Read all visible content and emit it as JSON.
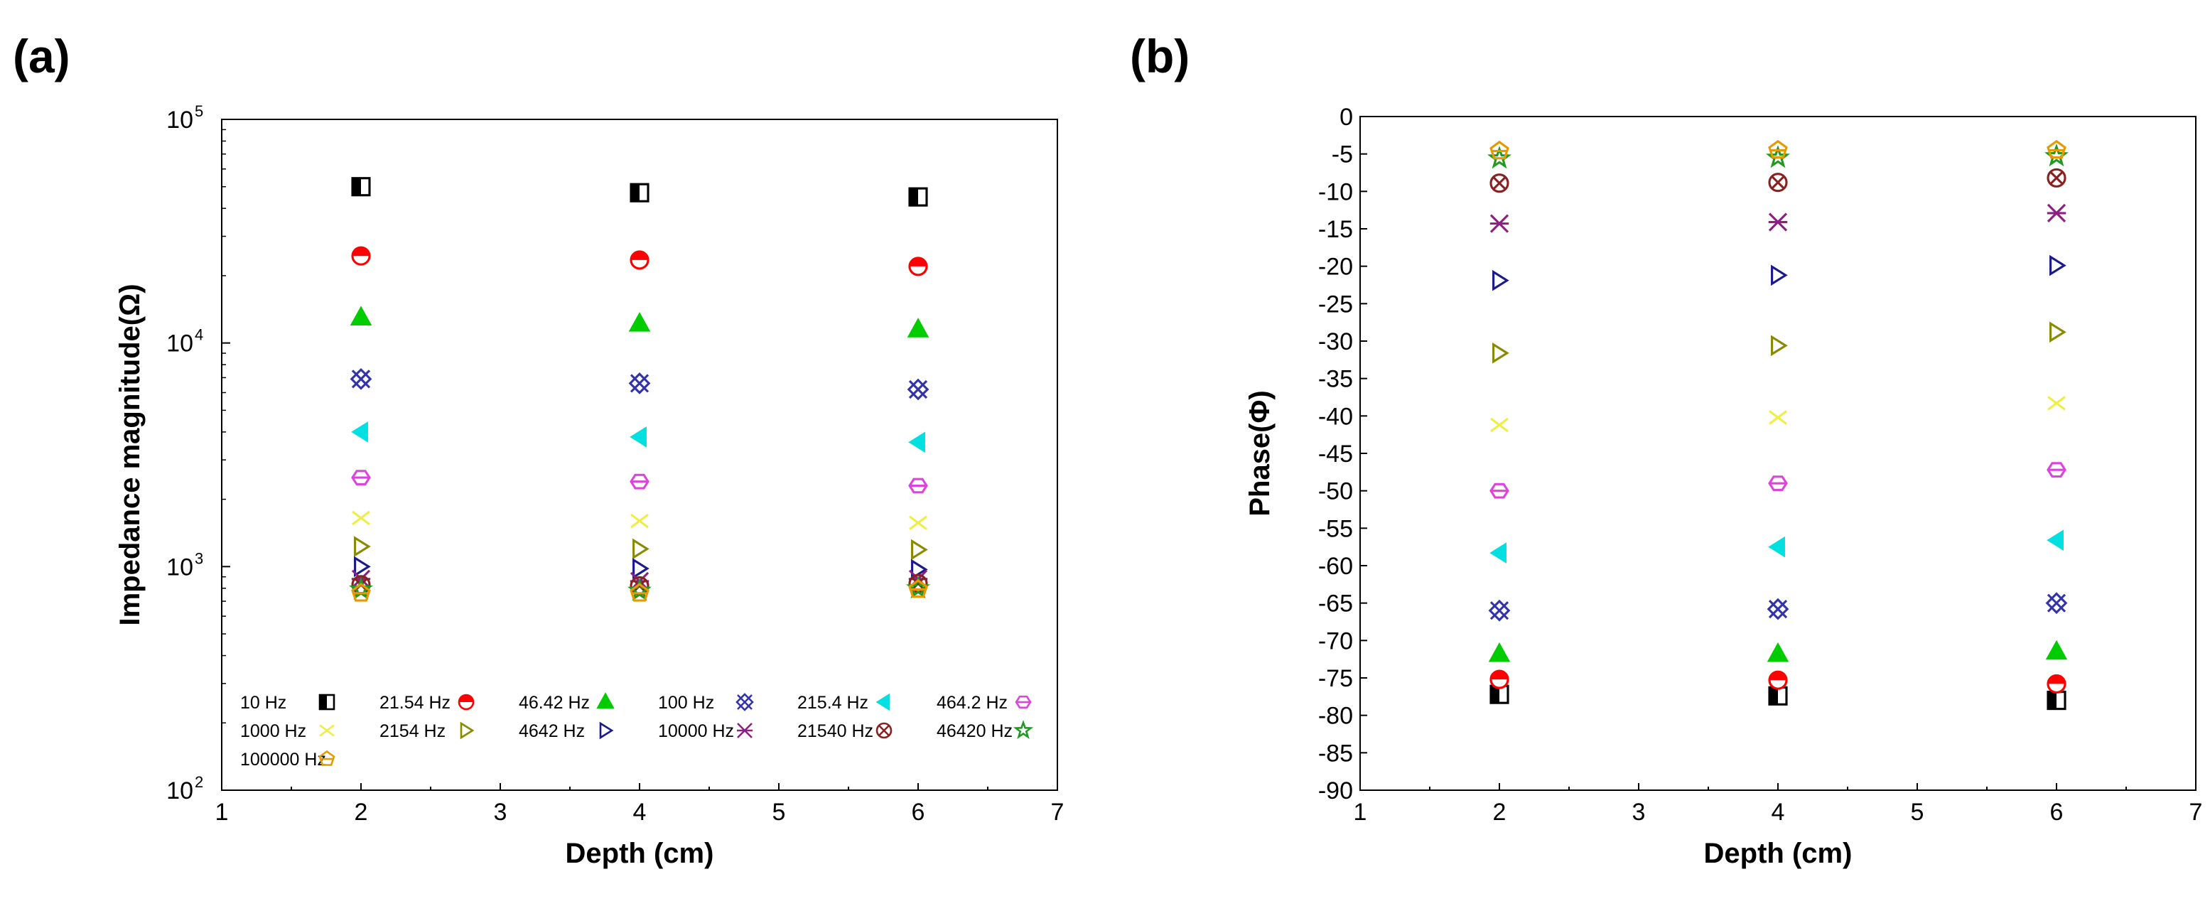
{
  "panels": {
    "a_label": "(a)",
    "b_label": "(b)"
  },
  "chart_data": [
    {
      "id": "a",
      "type": "scatter",
      "title": "",
      "xlabel": "Depth (cm)",
      "ylabel": "Impedance magnitude(Ω)",
      "xlim": [
        1,
        7
      ],
      "ylim": [
        100,
        100000
      ],
      "yscale": "log",
      "x_ticks": [
        "1",
        "2",
        "3",
        "4",
        "5",
        "6",
        "7"
      ],
      "y_ticks": [
        {
          "value": 100,
          "base": "10",
          "exp": "2"
        },
        {
          "value": 1000,
          "base": "10",
          "exp": "3"
        },
        {
          "value": 10000,
          "base": "10",
          "exp": "4"
        },
        {
          "value": 100000,
          "base": "10",
          "exp": "5"
        }
      ],
      "legend_position": "bottom-left inside",
      "x": [
        2,
        4,
        6
      ],
      "series": [
        {
          "name": "10 Hz",
          "marker": "half-square",
          "color": "#000000",
          "values": [
            50000,
            47000,
            45000
          ]
        },
        {
          "name": "21.54 Hz",
          "marker": "half-circle",
          "color": "#ff0000",
          "values": [
            24500,
            23500,
            22000
          ]
        },
        {
          "name": "46.42 Hz",
          "marker": "triangle-up",
          "color": "#00cc00",
          "values": [
            13000,
            12200,
            11500
          ]
        },
        {
          "name": "100 Hz",
          "marker": "crossed-diamond",
          "color": "#3333aa",
          "values": [
            6900,
            6600,
            6200
          ]
        },
        {
          "name": "215.4 Hz",
          "marker": "triangle-left",
          "color": "#00e0e0",
          "values": [
            4000,
            3800,
            3600
          ]
        },
        {
          "name": "464.2 Hz",
          "marker": "hexagon",
          "color": "#dd44dd",
          "values": [
            2500,
            2400,
            2300
          ]
        },
        {
          "name": "1000 Hz",
          "marker": "x",
          "color": "#eeee44",
          "values": [
            1650,
            1600,
            1570
          ]
        },
        {
          "name": "2154 Hz",
          "marker": "triangle-right",
          "color": "#8a8a00",
          "values": [
            1230,
            1200,
            1190
          ]
        },
        {
          "name": "4642 Hz",
          "marker": "triangle-right",
          "color": "#1a1a8a",
          "values": [
            1000,
            980,
            970
          ]
        },
        {
          "name": "10000 Hz",
          "marker": "star-x",
          "color": "#8a2080",
          "values": [
            880,
            860,
            880
          ]
        },
        {
          "name": "21540 Hz",
          "marker": "circle-x",
          "color": "#882222",
          "values": [
            830,
            820,
            840
          ]
        },
        {
          "name": "46420 Hz",
          "marker": "star",
          "color": "#229922",
          "values": [
            790,
            780,
            800
          ]
        },
        {
          "name": "100000 Hz",
          "marker": "pentagon",
          "color": "#e69900",
          "values": [
            760,
            760,
            790
          ]
        }
      ]
    },
    {
      "id": "b",
      "type": "scatter",
      "title": "",
      "xlabel": "Depth (cm)",
      "ylabel": "Phase(Φ)",
      "xlim": [
        1,
        7
      ],
      "ylim": [
        -90,
        0
      ],
      "x_ticks": [
        "1",
        "2",
        "3",
        "4",
        "5",
        "6",
        "7"
      ],
      "y_ticks": [
        "0",
        "-5",
        "-10",
        "-15",
        "-20",
        "-25",
        "-30",
        "-35",
        "-40",
        "-45",
        "-50",
        "-55",
        "-60",
        "-65",
        "-70",
        "-75",
        "-80",
        "-85",
        "-90"
      ],
      "x": [
        2,
        4,
        6
      ],
      "series": [
        {
          "name": "10 Hz",
          "marker": "half-square",
          "color": "#000000",
          "values": [
            -77.2,
            -77.4,
            -78.0
          ]
        },
        {
          "name": "21.54 Hz",
          "marker": "half-circle",
          "color": "#ff0000",
          "values": [
            -75.2,
            -75.3,
            -75.8
          ]
        },
        {
          "name": "46.42 Hz",
          "marker": "triangle-up",
          "color": "#00cc00",
          "values": [
            -71.8,
            -71.8,
            -71.5
          ]
        },
        {
          "name": "100 Hz",
          "marker": "crossed-diamond",
          "color": "#3333aa",
          "values": [
            -66.0,
            -65.8,
            -65.0
          ]
        },
        {
          "name": "215.4 Hz",
          "marker": "triangle-left",
          "color": "#00e0e0",
          "values": [
            -58.3,
            -57.5,
            -56.6
          ]
        },
        {
          "name": "464.2 Hz",
          "marker": "hexagon",
          "color": "#dd44dd",
          "values": [
            -50.0,
            -49.0,
            -47.2
          ]
        },
        {
          "name": "1000 Hz",
          "marker": "x",
          "color": "#eeee44",
          "values": [
            -41.2,
            -40.2,
            -38.3
          ]
        },
        {
          "name": "2154 Hz",
          "marker": "triangle-right",
          "color": "#8a8a00",
          "values": [
            -31.6,
            -30.6,
            -28.8
          ]
        },
        {
          "name": "4642 Hz",
          "marker": "triangle-right",
          "color": "#1a1a8a",
          "values": [
            -21.9,
            -21.2,
            -19.9
          ]
        },
        {
          "name": "10000 Hz",
          "marker": "star-x",
          "color": "#8a2080",
          "values": [
            -14.3,
            -14.1,
            -12.9
          ]
        },
        {
          "name": "21540 Hz",
          "marker": "circle-x",
          "color": "#882222",
          "values": [
            -8.9,
            -8.8,
            -8.2
          ]
        },
        {
          "name": "46420 Hz",
          "marker": "star",
          "color": "#229922",
          "values": [
            -5.6,
            -5.5,
            -5.3
          ]
        },
        {
          "name": "100000 Hz",
          "marker": "pentagon",
          "color": "#e69900",
          "values": [
            -4.6,
            -4.5,
            -4.5
          ]
        }
      ]
    }
  ]
}
